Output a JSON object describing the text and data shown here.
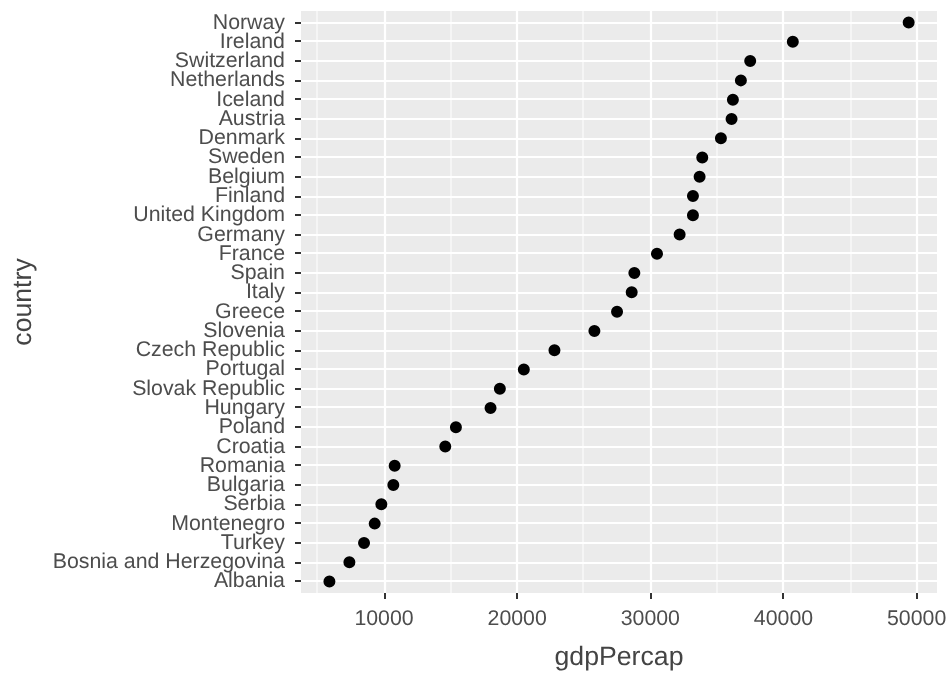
{
  "chart_data": {
    "type": "scatter",
    "orientation": "horizontal",
    "xlabel": "gdpPercap",
    "ylabel": "country",
    "categories": [
      "Norway",
      "Ireland",
      "Switzerland",
      "Netherlands",
      "Iceland",
      "Austria",
      "Denmark",
      "Sweden",
      "Belgium",
      "Finland",
      "United Kingdom",
      "Germany",
      "France",
      "Spain",
      "Italy",
      "Greece",
      "Slovenia",
      "Czech Republic",
      "Portugal",
      "Slovak Republic",
      "Hungary",
      "Poland",
      "Croatia",
      "Romania",
      "Bulgaria",
      "Serbia",
      "Montenegro",
      "Turkey",
      "Bosnia and Herzegovina",
      "Albania"
    ],
    "values": [
      49400,
      40700,
      37500,
      36800,
      36200,
      36100,
      35300,
      33900,
      33700,
      33200,
      33200,
      32200,
      30500,
      28800,
      28600,
      27500,
      25800,
      22800,
      20500,
      18700,
      18000,
      15400,
      14600,
      10800,
      10700,
      9800,
      9300,
      8500,
      7400,
      5900
    ],
    "color": "#000000",
    "marker": "circle",
    "xlim": [
      3766,
      51528
    ],
    "xticks": [
      10000,
      20000,
      30000,
      40000,
      50000
    ],
    "grid": true
  }
}
